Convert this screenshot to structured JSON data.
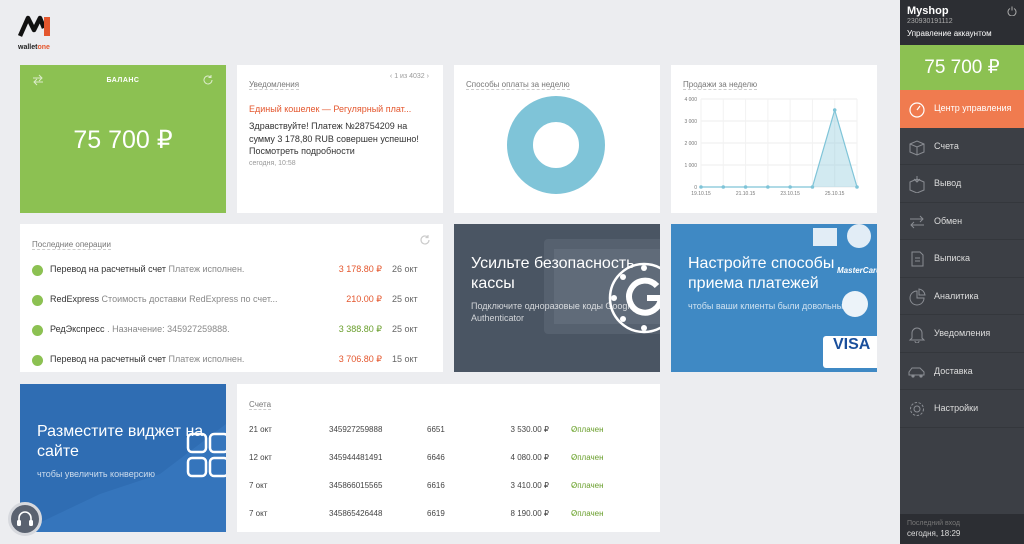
{
  "logo": {
    "text_main": "wallet",
    "text_accent": "one"
  },
  "balance": {
    "label": "БАЛАНС",
    "amount": "75 700 ₽"
  },
  "notifications": {
    "title": "Уведомления",
    "pager": "1 из 4032",
    "headline": "Единый кошелек — Регулярный плат...",
    "body": "Здравствуйте! Платеж №28754209 на сумму 3 178,80 RUB совершен успешно! Посмотреть подробности",
    "time": "сегодня, 10:58"
  },
  "payment_methods": {
    "title": "Способы оплаты за неделю",
    "ring_color": "#7fc4d8"
  },
  "sales": {
    "title": "Продажи за неделю"
  },
  "chart_data": {
    "type": "area",
    "title": "Продажи за неделю",
    "x": [
      "19.10.15",
      "20.10.15",
      "21.10.15",
      "22.10.15",
      "23.10.15",
      "24.10.15",
      "25.10.15",
      "26.10.15"
    ],
    "x_tick_labels": [
      "19.10.15",
      "21.10.15",
      "23.10.15",
      "25.10.15"
    ],
    "values": [
      0,
      0,
      0,
      0,
      0,
      0,
      3500,
      0
    ],
    "y_ticks": [
      "4 000",
      "3 000",
      "2 000",
      "1 000",
      "0"
    ],
    "ylim": [
      0,
      4000
    ],
    "grid": true,
    "color": "#7fc4d8"
  },
  "operations": {
    "title": "Последние операции",
    "rows": [
      {
        "main": "Перевод на расчетный счет",
        "muted": "Платеж исполнен.",
        "amount": "3 178.80 ₽",
        "tone": "red",
        "date": "26 окт"
      },
      {
        "main": "RedExpress",
        "muted": "Стоимость доставки RedExpress по счет...",
        "amount": "210.00 ₽",
        "tone": "red",
        "date": "25 окт"
      },
      {
        "main": "РедЭкспресс",
        "muted": ". Назначение: 345927259888.",
        "amount": "3 388.80 ₽",
        "tone": "green",
        "date": "25 окт"
      },
      {
        "main": "Перевод на расчетный счет",
        "muted": "Платеж исполнен.",
        "amount": "3 706.80 ₽",
        "tone": "red",
        "date": "15 окт"
      }
    ]
  },
  "promo_security": {
    "title": "Усильте безопасность кассы",
    "subtitle": "Подключите одноразовые коды Google Authenticator"
  },
  "promo_payments": {
    "title": "Настройте способы приема платежей",
    "subtitle": "чтобы ваши клиенты были довольны",
    "card_brand_1": "MasterCard",
    "card_brand_2": "VISA"
  },
  "promo_widget": {
    "title": "Разместите виджет на сайте",
    "subtitle": "чтобы увеличить конверсию"
  },
  "accounts": {
    "title": "Счета",
    "rows": [
      {
        "date": "21 окт",
        "number": "345927259888",
        "id": "6651",
        "sum": "3 530.00 ₽",
        "status": "Оплачен"
      },
      {
        "date": "12 окт",
        "number": "345944481491",
        "id": "6646",
        "sum": "4 080.00 ₽",
        "status": "Оплачен"
      },
      {
        "date": "7 окт",
        "number": "345866015565",
        "id": "6616",
        "sum": "3 410.00 ₽",
        "status": "Оплачен"
      },
      {
        "date": "7 окт",
        "number": "345865426448",
        "id": "6619",
        "sum": "8 190.00 ₽",
        "status": "Оплачен"
      }
    ]
  },
  "sidebar": {
    "shop": "Myshop",
    "shop_id": "230930191112",
    "manage": "Управление аккаунтом",
    "balance": "75 700 ₽",
    "items": [
      {
        "label": "Центр управления",
        "icon": "gauge-icon",
        "active": true
      },
      {
        "label": "Счета",
        "icon": "box-icon"
      },
      {
        "label": "Вывод",
        "icon": "box-out-icon"
      },
      {
        "label": "Обмен",
        "icon": "exchange-icon"
      },
      {
        "label": "Выписка",
        "icon": "statement-icon"
      },
      {
        "label": "Аналитика",
        "icon": "pie-icon"
      },
      {
        "label": "Уведомления",
        "icon": "bell-icon"
      },
      {
        "label": "Доставка",
        "icon": "car-icon"
      },
      {
        "label": "Настройки",
        "icon": "gear-icon"
      }
    ],
    "last_login_label": "Последний вход",
    "last_login_value": "сегодня, 18:29"
  }
}
